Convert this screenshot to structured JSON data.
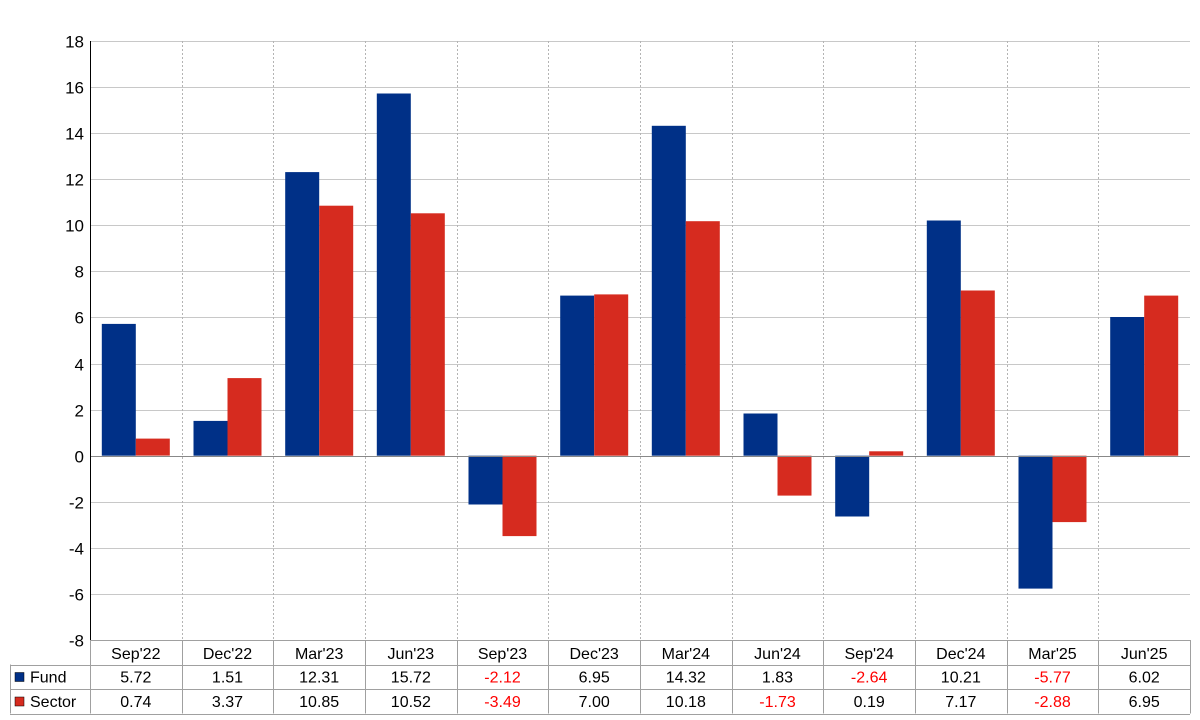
{
  "chart_data": {
    "type": "bar",
    "title": "",
    "xlabel": "",
    "ylabel": "",
    "categories": [
      "Sep'22",
      "Dec'22",
      "Mar'23",
      "Jun'23",
      "Sep'23",
      "Dec'23",
      "Mar'24",
      "Jun'24",
      "Sep'24",
      "Dec'24",
      "Mar'25",
      "Jun'25"
    ],
    "series": [
      {
        "name": "Fund",
        "color": "#003087",
        "values": [
          5.72,
          1.51,
          12.31,
          15.72,
          -2.12,
          6.95,
          14.32,
          1.83,
          -2.64,
          10.21,
          -5.77,
          6.02
        ],
        "display": [
          "5.72",
          "1.51",
          "12.31",
          "15.72",
          "-2.12",
          "6.95",
          "14.32",
          "1.83",
          "-2.64",
          "10.21",
          "-5.77",
          "6.02"
        ]
      },
      {
        "name": "Sector",
        "color": "#d62b1f",
        "values": [
          0.74,
          3.37,
          10.85,
          10.52,
          -3.49,
          7.0,
          10.18,
          -1.73,
          0.19,
          7.17,
          -2.88,
          6.95
        ],
        "display": [
          "0.74",
          "3.37",
          "10.85",
          "10.52",
          "-3.49",
          "7.00",
          "10.18",
          "-1.73",
          "0.19",
          "7.17",
          "-2.88",
          "6.95"
        ]
      }
    ],
    "ylim": [
      -8,
      18
    ],
    "yticks": [
      18,
      16,
      14,
      12,
      10,
      8,
      6,
      4,
      2,
      0,
      -2,
      -4,
      -6,
      -8
    ],
    "grid": true,
    "legend": "table-left",
    "negative_value_color": "#ff0000"
  }
}
